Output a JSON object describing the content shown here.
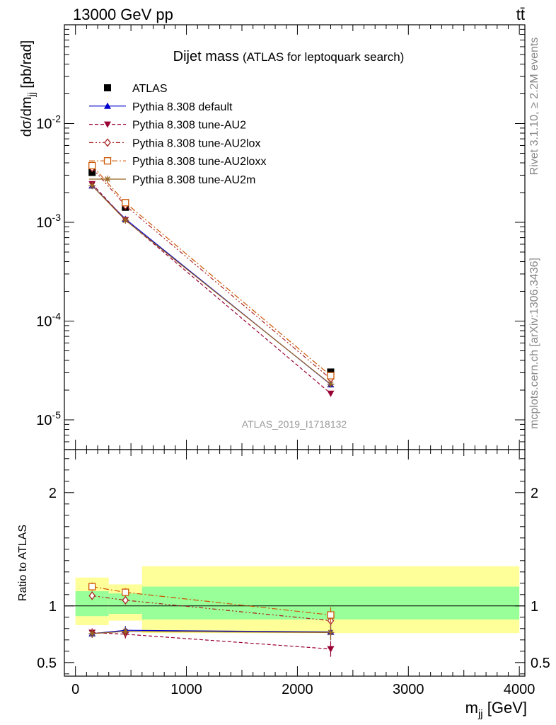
{
  "header": {
    "process": "13000 GeV pp",
    "final_state": "tt̄"
  },
  "side_labels": {
    "rivet": "Rivet 3.1.10, ≥ 2.2M events",
    "source": "mcplots.cern.ch [arXiv:1306.3436]"
  },
  "analysis_id": "ATLAS_2019_I1718132",
  "colors": {
    "data": "#000000",
    "default": "#0000cc",
    "AU2": "#990033",
    "AU2lox": "#aa2222",
    "AU2loxx": "#cc5500",
    "AU2m": "#996622",
    "band_inner": "#99ff99",
    "band_outer": "#ffff99"
  },
  "chart_data": [
    {
      "type": "line",
      "title": "Dijet mass",
      "subtitle": "(ATLAS for leptoquark search)",
      "ylabel": "dσ/dm_jj [pb/rad]",
      "yscale": "log",
      "ylim": [
        5e-06,
        0.1
      ],
      "xlim": [
        -100,
        4050
      ],
      "y_tick_labels": [
        "10^-5",
        "10^-4",
        "10^-3",
        "10^-2"
      ],
      "legend_position": "top-left",
      "x": [
        150,
        450,
        2300
      ],
      "series": [
        {
          "name": "ATLAS",
          "marker": "square-filled",
          "values": [
            0.0032,
            0.00142,
            3.05e-05
          ]
        },
        {
          "name": "Pythia 8.308 default",
          "marker": "triangle-up-filled",
          "dash": "solid",
          "values": [
            0.00235,
            0.00108,
            2.28e-05
          ]
        },
        {
          "name": "Pythia 8.308 tune-AU2",
          "marker": "triangle-down-filled",
          "dash": "dashed",
          "values": [
            0.00245,
            0.00106,
            1.85e-05
          ]
        },
        {
          "name": "Pythia 8.308 tune-AU2lox",
          "marker": "diamond-open",
          "dash": "dash-dot-dot",
          "values": [
            0.00355,
            0.00148,
            2.6e-05
          ]
        },
        {
          "name": "Pythia 8.308 tune-AU2loxx",
          "marker": "square-open",
          "dash": "dash-dot",
          "values": [
            0.00375,
            0.00158,
            2.8e-05
          ]
        },
        {
          "name": "Pythia 8.308 tune-AU2m",
          "marker": "star",
          "dash": "solid",
          "values": [
            0.00235,
            0.00105,
            2.3e-05
          ]
        }
      ]
    },
    {
      "type": "line",
      "ylabel": "Ratio to ATLAS",
      "xlabel": "m_jj [GeV]",
      "ylim": [
        0.38,
        2.38
      ],
      "xlim": [
        -100,
        4050
      ],
      "y_tick_labels": [
        "0.5",
        "1",
        "2"
      ],
      "x_tick_labels": [
        "0",
        "1000",
        "2000",
        "3000",
        "4000"
      ],
      "bands": [
        {
          "xmin": 0,
          "xmax": 300,
          "inner": [
            0.91,
            1.13
          ],
          "outer": [
            0.83,
            1.25
          ]
        },
        {
          "xmin": 300,
          "xmax": 600,
          "inner": [
            0.93,
            1.11
          ],
          "outer": [
            0.87,
            1.19
          ]
        },
        {
          "xmin": 600,
          "xmax": 4000,
          "inner": [
            0.88,
            1.17
          ],
          "outer": [
            0.76,
            1.35
          ]
        }
      ],
      "x": [
        150,
        450,
        2300
      ],
      "series": [
        {
          "name": "Pythia 8.308 default",
          "values": [
            0.755,
            0.785,
            0.77
          ]
        },
        {
          "name": "Pythia 8.308 tune-AU2",
          "values": [
            0.765,
            0.75,
            0.62
          ]
        },
        {
          "name": "Pythia 8.308 tune-AU2lox",
          "values": [
            1.09,
            1.05,
            0.87
          ]
        },
        {
          "name": "Pythia 8.308 tune-AU2loxx",
          "values": [
            1.17,
            1.12,
            0.92
          ]
        },
        {
          "name": "Pythia 8.308 tune-AU2m",
          "values": [
            0.755,
            0.775,
            0.765
          ]
        }
      ]
    }
  ]
}
